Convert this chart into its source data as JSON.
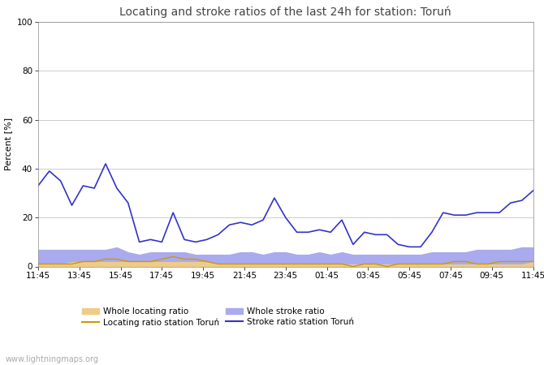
{
  "title": "Locating and stroke ratios of the last 24h for station: Toruń",
  "ylabel": "Percent [%]",
  "xlim": [
    0,
    48
  ],
  "ylim": [
    0,
    100
  ],
  "yticks": [
    0,
    20,
    40,
    60,
    80,
    100
  ],
  "xtick_labels": [
    "11:45",
    "13:45",
    "15:45",
    "17:45",
    "19:45",
    "21:45",
    "23:45",
    "01:45",
    "03:45",
    "05:45",
    "07:45",
    "09:45",
    "11:45"
  ],
  "background_color": "#ffffff",
  "plot_bg_color": "#ffffff",
  "watermark": "www.lightningmaps.org",
  "stroke_ratio_station": [
    33,
    39,
    35,
    25,
    33,
    32,
    42,
    32,
    26,
    10,
    11,
    10,
    22,
    11,
    10,
    11,
    13,
    17,
    18,
    17,
    19,
    28,
    20,
    14,
    14,
    15,
    14,
    19,
    9,
    14,
    13,
    13,
    9,
    8,
    8,
    14,
    22,
    21,
    21,
    22,
    22,
    22,
    26,
    27,
    31
  ],
  "locating_ratio_station": [
    1,
    1,
    1,
    1,
    2,
    2,
    3,
    3,
    2,
    2,
    2,
    3,
    4,
    3,
    3,
    2,
    1,
    1,
    1,
    1,
    1,
    1,
    1,
    1,
    1,
    1,
    1,
    1,
    0,
    1,
    1,
    0,
    1,
    1,
    1,
    1,
    1,
    2,
    2,
    1,
    1,
    2,
    2,
    2,
    2
  ],
  "whole_stroke_ratio": [
    7,
    7,
    7,
    7,
    7,
    7,
    7,
    8,
    6,
    5,
    6,
    6,
    6,
    6,
    5,
    5,
    5,
    5,
    6,
    6,
    5,
    6,
    6,
    5,
    5,
    6,
    5,
    6,
    5,
    5,
    5,
    5,
    5,
    5,
    5,
    6,
    6,
    6,
    6,
    7,
    7,
    7,
    7,
    8,
    8
  ],
  "whole_locating_ratio": [
    1,
    1,
    1,
    2,
    2,
    2,
    2,
    2,
    2,
    2,
    2,
    2,
    2,
    2,
    2,
    2,
    1,
    1,
    1,
    1,
    1,
    1,
    1,
    1,
    1,
    1,
    1,
    1,
    1,
    1,
    1,
    1,
    1,
    1,
    1,
    1,
    1,
    1,
    1,
    1,
    1,
    1,
    1,
    1,
    2
  ],
  "stroke_ratio_color": "#3333cc",
  "locating_ratio_color": "#cc9900",
  "whole_stroke_fill_color": "#aaaaee",
  "whole_locating_fill_color": "#eecc88",
  "title_fontsize": 10,
  "tick_fontsize": 7.5,
  "label_fontsize": 8,
  "legend_fontsize": 7.5
}
